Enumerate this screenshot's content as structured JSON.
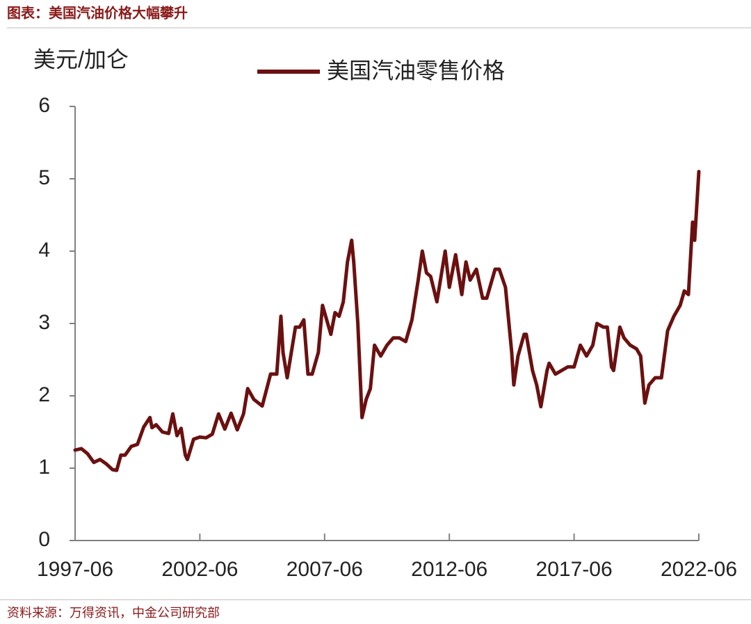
{
  "chart_data": {
    "type": "line",
    "title": "图表：美国汽油价格大幅攀升",
    "y_label": "美元/加仑",
    "source": "资料来源：万得资讯，中金公司研究部",
    "x": [
      "1997-06",
      "1997-09",
      "1997-12",
      "1998-03",
      "1998-06",
      "1998-09",
      "1998-12",
      "1999-02",
      "1999-04",
      "1999-06",
      "1999-09",
      "1999-12",
      "2000-03",
      "2000-06",
      "2000-07",
      "2000-09",
      "2000-12",
      "2001-03",
      "2001-05",
      "2001-07",
      "2001-09",
      "2001-11",
      "2001-12",
      "2002-03",
      "2002-06",
      "2002-09",
      "2002-12",
      "2003-03",
      "2003-06",
      "2003-09",
      "2003-12",
      "2004-03",
      "2004-05",
      "2004-08",
      "2004-12",
      "2005-04",
      "2005-07",
      "2005-09",
      "2005-10",
      "2005-12",
      "2006-04",
      "2006-06",
      "2006-08",
      "2006-10",
      "2006-12",
      "2007-03",
      "2007-05",
      "2007-07",
      "2007-09",
      "2007-11",
      "2008-01",
      "2008-03",
      "2008-05",
      "2008-07",
      "2008-08",
      "2008-10",
      "2008-12",
      "2009-02",
      "2009-04",
      "2009-06",
      "2009-09",
      "2009-12",
      "2010-03",
      "2010-06",
      "2010-09",
      "2010-12",
      "2011-03",
      "2011-05",
      "2011-07",
      "2011-09",
      "2011-12",
      "2012-04",
      "2012-06",
      "2012-09",
      "2012-12",
      "2013-02",
      "2013-04",
      "2013-07",
      "2013-10",
      "2013-12",
      "2014-04",
      "2014-06",
      "2014-09",
      "2014-12",
      "2015-01",
      "2015-03",
      "2015-06",
      "2015-07",
      "2015-10",
      "2015-12",
      "2016-02",
      "2016-05",
      "2016-06",
      "2016-09",
      "2016-12",
      "2017-03",
      "2017-06",
      "2017-09",
      "2017-12",
      "2018-03",
      "2018-05",
      "2018-08",
      "2018-10",
      "2018-12",
      "2019-01",
      "2019-04",
      "2019-06",
      "2019-09",
      "2019-12",
      "2020-02",
      "2020-04",
      "2020-06",
      "2020-09",
      "2020-12",
      "2021-03",
      "2021-06",
      "2021-09",
      "2021-11",
      "2022-01",
      "2022-03",
      "2022-04",
      "2022-06"
    ],
    "series": [
      {
        "name": "美国汽油零售价格",
        "color": "#6b1010",
        "values": [
          1.25,
          1.27,
          1.2,
          1.08,
          1.12,
          1.06,
          0.98,
          0.97,
          1.18,
          1.18,
          1.3,
          1.33,
          1.57,
          1.7,
          1.56,
          1.6,
          1.5,
          1.48,
          1.75,
          1.45,
          1.55,
          1.18,
          1.12,
          1.4,
          1.43,
          1.42,
          1.47,
          1.75,
          1.54,
          1.76,
          1.53,
          1.75,
          2.1,
          1.95,
          1.86,
          2.3,
          2.3,
          3.1,
          2.6,
          2.25,
          2.95,
          2.95,
          3.05,
          2.3,
          2.3,
          2.6,
          3.25,
          3.05,
          2.85,
          3.15,
          3.1,
          3.3,
          3.85,
          4.15,
          3.85,
          3.0,
          1.7,
          1.95,
          2.1,
          2.7,
          2.55,
          2.7,
          2.8,
          2.8,
          2.75,
          3.05,
          3.6,
          4.0,
          3.7,
          3.65,
          3.3,
          4.0,
          3.5,
          3.95,
          3.4,
          3.85,
          3.6,
          3.75,
          3.35,
          3.35,
          3.75,
          3.75,
          3.5,
          2.6,
          2.15,
          2.55,
          2.85,
          2.85,
          2.35,
          2.15,
          1.85,
          2.35,
          2.45,
          2.3,
          2.35,
          2.4,
          2.4,
          2.7,
          2.55,
          2.7,
          3.0,
          2.95,
          2.95,
          2.4,
          2.35,
          2.95,
          2.8,
          2.7,
          2.65,
          2.55,
          1.9,
          2.15,
          2.25,
          2.25,
          2.9,
          3.1,
          3.25,
          3.45,
          3.4,
          4.4,
          4.15,
          5.1
        ]
      }
    ],
    "xlim": [
      "1997-06",
      "2022-06"
    ],
    "xticks": [
      "1997-06",
      "2002-06",
      "2007-06",
      "2012-06",
      "2017-06",
      "2022-06"
    ],
    "ylim": [
      0,
      6
    ],
    "yticks": [
      0,
      1,
      2,
      3,
      4,
      5,
      6
    ]
  }
}
